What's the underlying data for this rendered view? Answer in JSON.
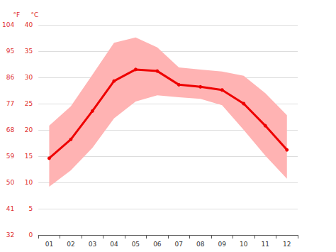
{
  "chart_data": {
    "type": "line",
    "categories": [
      "01",
      "02",
      "03",
      "04",
      "05",
      "06",
      "07",
      "08",
      "09",
      "10",
      "11",
      "12"
    ],
    "ylabel": "°C",
    "ylim": [
      0,
      40
    ],
    "yticks": [
      0,
      5,
      10,
      15,
      20,
      25,
      30,
      35,
      40
    ],
    "y2label": "°F",
    "y2lim": [
      32,
      104
    ],
    "y2ticks": [
      32,
      41,
      50,
      59,
      68,
      77,
      86,
      95,
      104
    ],
    "grid": true,
    "series": [
      {
        "type": "band",
        "color": "#ffb3b3",
        "high": [
          20.8,
          24.5,
          30.5,
          36.6,
          37.6,
          35.7,
          31.9,
          31.5,
          31.1,
          30.3,
          27.0,
          22.8
        ],
        "low": [
          9.2,
          12.3,
          16.6,
          22.2,
          25.4,
          26.6,
          26.2,
          25.9,
          24.7,
          20.0,
          15.1,
          10.7
        ]
      },
      {
        "type": "line",
        "color": "#ee0000",
        "marker": "circle",
        "values": [
          14.6,
          18.2,
          23.6,
          29.3,
          31.5,
          31.2,
          28.6,
          28.2,
          27.6,
          25.0,
          20.8,
          16.2
        ]
      }
    ]
  }
}
